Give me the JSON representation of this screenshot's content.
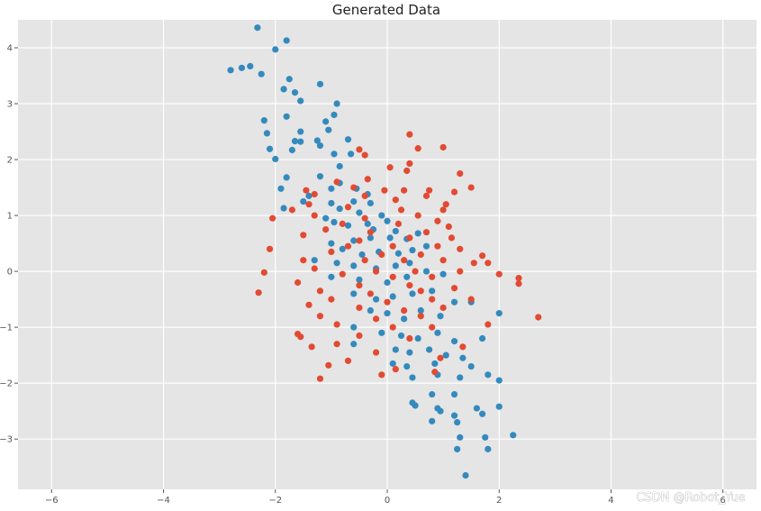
{
  "watermark": "CSDN @Robot_Yue",
  "colors": {
    "background": "#E5E5E5",
    "grid": "#FFFFFF",
    "blue": "#348ABD",
    "red": "#E24A33"
  },
  "chart_data": {
    "type": "scatter",
    "title": "Generated Data",
    "xlabel": "",
    "ylabel": "",
    "xlim": [
      -6.6,
      6.6
    ],
    "ylim": [
      -3.9,
      4.5
    ],
    "grid": true,
    "xticks": [
      -6,
      -4,
      -2,
      0,
      2,
      4,
      6
    ],
    "xtick_labels": [
      "−6",
      "−4",
      "−2",
      "0",
      "2",
      "4",
      "6"
    ],
    "yticks": [
      -3,
      -2,
      -1,
      0,
      1,
      2,
      3,
      4
    ],
    "ytick_labels": [
      "−3",
      "−2",
      "−1",
      "0",
      "1",
      "2",
      "3",
      "4"
    ],
    "series": [
      {
        "color": "#348ABD",
        "points": [
          [
            -2.32,
            4.36
          ],
          [
            -1.8,
            4.13
          ],
          [
            -2.0,
            3.97
          ],
          [
            -2.8,
            3.6
          ],
          [
            -2.6,
            3.64
          ],
          [
            -2.45,
            3.67
          ],
          [
            -2.25,
            3.53
          ],
          [
            -1.75,
            3.44
          ],
          [
            -1.85,
            3.26
          ],
          [
            -1.2,
            3.35
          ],
          [
            -1.65,
            3.2
          ],
          [
            -1.55,
            3.05
          ],
          [
            -0.9,
            3.0
          ],
          [
            -1.8,
            2.77
          ],
          [
            -0.95,
            2.8
          ],
          [
            -1.1,
            2.68
          ],
          [
            -2.2,
            2.7
          ],
          [
            -2.15,
            2.47
          ],
          [
            -1.05,
            2.53
          ],
          [
            -1.55,
            2.5
          ],
          [
            -1.65,
            2.33
          ],
          [
            -1.55,
            2.32
          ],
          [
            -1.25,
            2.34
          ],
          [
            -0.7,
            2.36
          ],
          [
            -1.7,
            2.17
          ],
          [
            -2.1,
            2.19
          ],
          [
            -1.2,
            2.25
          ],
          [
            -0.95,
            2.1
          ],
          [
            -0.65,
            2.1
          ],
          [
            -2.0,
            2.01
          ],
          [
            -0.85,
            1.88
          ],
          [
            -1.2,
            1.7
          ],
          [
            -0.85,
            1.58
          ],
          [
            -1.8,
            1.68
          ],
          [
            -1.9,
            1.48
          ],
          [
            -1.4,
            1.35
          ],
          [
            -1.0,
            1.48
          ],
          [
            -0.55,
            1.48
          ],
          [
            -0.35,
            1.38
          ],
          [
            -1.5,
            1.25
          ],
          [
            -1.0,
            1.22
          ],
          [
            -0.6,
            1.25
          ],
          [
            -0.3,
            1.22
          ],
          [
            -1.85,
            1.13
          ],
          [
            -0.85,
            1.12
          ],
          [
            -0.5,
            1.05
          ],
          [
            -0.1,
            1.0
          ],
          [
            0.0,
            0.9
          ],
          [
            -1.1,
            0.95
          ],
          [
            -0.95,
            0.88
          ],
          [
            -0.7,
            0.82
          ],
          [
            -0.35,
            0.85
          ],
          [
            -0.25,
            0.75
          ],
          [
            0.15,
            0.72
          ],
          [
            -1.0,
            0.5
          ],
          [
            -0.6,
            0.55
          ],
          [
            -0.3,
            0.6
          ],
          [
            0.05,
            0.6
          ],
          [
            0.35,
            0.58
          ],
          [
            0.55,
            0.68
          ],
          [
            -0.8,
            0.4
          ],
          [
            -0.45,
            0.3
          ],
          [
            -0.15,
            0.35
          ],
          [
            0.2,
            0.32
          ],
          [
            0.45,
            0.38
          ],
          [
            0.7,
            0.45
          ],
          [
            -1.3,
            0.2
          ],
          [
            -0.9,
            0.15
          ],
          [
            -0.6,
            0.1
          ],
          [
            -0.2,
            0.05
          ],
          [
            0.15,
            0.1
          ],
          [
            0.4,
            0.15
          ],
          [
            -1.0,
            -0.1
          ],
          [
            -0.5,
            -0.15
          ],
          [
            0.0,
            -0.2
          ],
          [
            0.35,
            -0.1
          ],
          [
            0.7,
            0.0
          ],
          [
            1.0,
            -0.05
          ],
          [
            -0.6,
            -0.4
          ],
          [
            -0.2,
            -0.5
          ],
          [
            0.1,
            -0.45
          ],
          [
            0.45,
            -0.4
          ],
          [
            0.8,
            -0.35
          ],
          [
            1.2,
            -0.55
          ],
          [
            1.5,
            -0.55
          ],
          [
            -0.3,
            -0.7
          ],
          [
            0.0,
            -0.75
          ],
          [
            0.3,
            -0.85
          ],
          [
            0.6,
            -0.7
          ],
          [
            0.95,
            -0.8
          ],
          [
            2.0,
            -0.75
          ],
          [
            -0.6,
            -1.0
          ],
          [
            -0.1,
            -1.1
          ],
          [
            0.25,
            -1.15
          ],
          [
            0.55,
            -1.2
          ],
          [
            0.9,
            -1.1
          ],
          [
            1.2,
            -1.25
          ],
          [
            1.7,
            -1.2
          ],
          [
            -0.6,
            -1.3
          ],
          [
            0.15,
            -1.4
          ],
          [
            0.4,
            -1.45
          ],
          [
            0.75,
            -1.4
          ],
          [
            1.05,
            -1.5
          ],
          [
            1.35,
            -1.55
          ],
          [
            0.1,
            -1.65
          ],
          [
            0.35,
            -1.7
          ],
          [
            0.85,
            -1.65
          ],
          [
            1.5,
            -1.7
          ],
          [
            0.45,
            -1.9
          ],
          [
            0.9,
            -1.85
          ],
          [
            1.3,
            -1.9
          ],
          [
            1.8,
            -1.85
          ],
          [
            2.0,
            -1.95
          ],
          [
            0.8,
            -2.2
          ],
          [
            1.2,
            -2.2
          ],
          [
            0.45,
            -2.35
          ],
          [
            0.5,
            -2.4
          ],
          [
            0.9,
            -2.45
          ],
          [
            1.6,
            -2.45
          ],
          [
            2.0,
            -2.42
          ],
          [
            0.95,
            -2.5
          ],
          [
            1.2,
            -2.58
          ],
          [
            1.7,
            -2.55
          ],
          [
            0.8,
            -2.68
          ],
          [
            1.25,
            -2.7
          ],
          [
            1.3,
            -2.97
          ],
          [
            1.75,
            -2.97
          ],
          [
            2.25,
            -2.93
          ],
          [
            1.25,
            -3.18
          ],
          [
            1.8,
            -3.18
          ],
          [
            1.4,
            -3.65
          ]
        ]
      },
      {
        "color": "#E24A33",
        "points": [
          [
            0.4,
            2.45
          ],
          [
            1.0,
            2.22
          ],
          [
            0.55,
            2.2
          ],
          [
            -0.5,
            2.18
          ],
          [
            -0.4,
            2.08
          ],
          [
            0.4,
            1.93
          ],
          [
            0.05,
            1.86
          ],
          [
            0.35,
            1.8
          ],
          [
            1.3,
            1.75
          ],
          [
            -0.35,
            1.65
          ],
          [
            1.5,
            1.5
          ],
          [
            -0.9,
            1.6
          ],
          [
            -0.6,
            1.5
          ],
          [
            -0.05,
            1.45
          ],
          [
            0.3,
            1.45
          ],
          [
            0.75,
            1.45
          ],
          [
            1.2,
            1.42
          ],
          [
            -1.45,
            1.45
          ],
          [
            -1.3,
            1.38
          ],
          [
            -0.4,
            1.35
          ],
          [
            0.15,
            1.28
          ],
          [
            0.7,
            1.35
          ],
          [
            1.05,
            1.2
          ],
          [
            -1.4,
            1.2
          ],
          [
            -0.7,
            1.15
          ],
          [
            0.25,
            1.1
          ],
          [
            1.0,
            1.1
          ],
          [
            -1.7,
            1.1
          ],
          [
            -2.05,
            0.95
          ],
          [
            -1.3,
            1.0
          ],
          [
            -0.4,
            0.95
          ],
          [
            0.55,
            1.0
          ],
          [
            0.9,
            0.9
          ],
          [
            -0.8,
            0.85
          ],
          [
            0.2,
            0.85
          ],
          [
            1.1,
            0.8
          ],
          [
            -1.1,
            0.75
          ],
          [
            -0.3,
            0.7
          ],
          [
            0.7,
            0.7
          ],
          [
            -1.5,
            0.65
          ],
          [
            -0.5,
            0.55
          ],
          [
            0.4,
            0.6
          ],
          [
            1.15,
            0.6
          ],
          [
            -0.7,
            0.45
          ],
          [
            0.1,
            0.45
          ],
          [
            0.9,
            0.45
          ],
          [
            -2.1,
            0.4
          ],
          [
            -1.0,
            0.35
          ],
          [
            -0.1,
            0.3
          ],
          [
            0.6,
            0.3
          ],
          [
            1.3,
            0.4
          ],
          [
            1.7,
            0.28
          ],
          [
            -1.5,
            0.2
          ],
          [
            -0.4,
            0.2
          ],
          [
            0.3,
            0.2
          ],
          [
            1.0,
            0.2
          ],
          [
            1.55,
            0.15
          ],
          [
            -1.3,
            0.05
          ],
          [
            -0.2,
            0.0
          ],
          [
            0.5,
            0.0
          ],
          [
            1.3,
            0.0
          ],
          [
            1.8,
            0.15
          ],
          [
            2.0,
            -0.05
          ],
          [
            -2.2,
            -0.02
          ],
          [
            -0.8,
            -0.05
          ],
          [
            0.1,
            -0.1
          ],
          [
            0.8,
            -0.1
          ],
          [
            2.35,
            -0.12
          ],
          [
            -1.6,
            -0.2
          ],
          [
            -0.5,
            -0.25
          ],
          [
            0.4,
            -0.25
          ],
          [
            1.2,
            -0.3
          ],
          [
            2.35,
            -0.22
          ],
          [
            -2.3,
            -0.38
          ],
          [
            -1.2,
            -0.35
          ],
          [
            -0.3,
            -0.4
          ],
          [
            0.6,
            -0.35
          ],
          [
            1.5,
            -0.5
          ],
          [
            -1.0,
            -0.5
          ],
          [
            0.0,
            -0.55
          ],
          [
            0.8,
            -0.5
          ],
          [
            -1.4,
            -0.6
          ],
          [
            -0.5,
            -0.65
          ],
          [
            0.3,
            -0.7
          ],
          [
            1.0,
            -0.65
          ],
          [
            -1.2,
            -0.8
          ],
          [
            -0.2,
            -0.85
          ],
          [
            0.6,
            -0.8
          ],
          [
            2.7,
            -0.82
          ],
          [
            -0.9,
            -0.95
          ],
          [
            0.1,
            -1.0
          ],
          [
            0.8,
            -1.0
          ],
          [
            1.8,
            -0.95
          ],
          [
            -1.6,
            -1.12
          ],
          [
            -0.5,
            -1.15
          ],
          [
            0.4,
            -1.2
          ],
          [
            1.35,
            -1.35
          ],
          [
            -1.55,
            -1.17
          ],
          [
            -0.9,
            -1.3
          ],
          [
            -0.2,
            -1.45
          ],
          [
            -1.35,
            -1.35
          ],
          [
            -0.7,
            -1.6
          ],
          [
            0.95,
            -1.55
          ],
          [
            -1.05,
            -1.68
          ],
          [
            0.15,
            -1.75
          ],
          [
            0.85,
            -1.8
          ],
          [
            -0.1,
            -1.85
          ],
          [
            -1.2,
            -1.92
          ]
        ]
      }
    ]
  }
}
